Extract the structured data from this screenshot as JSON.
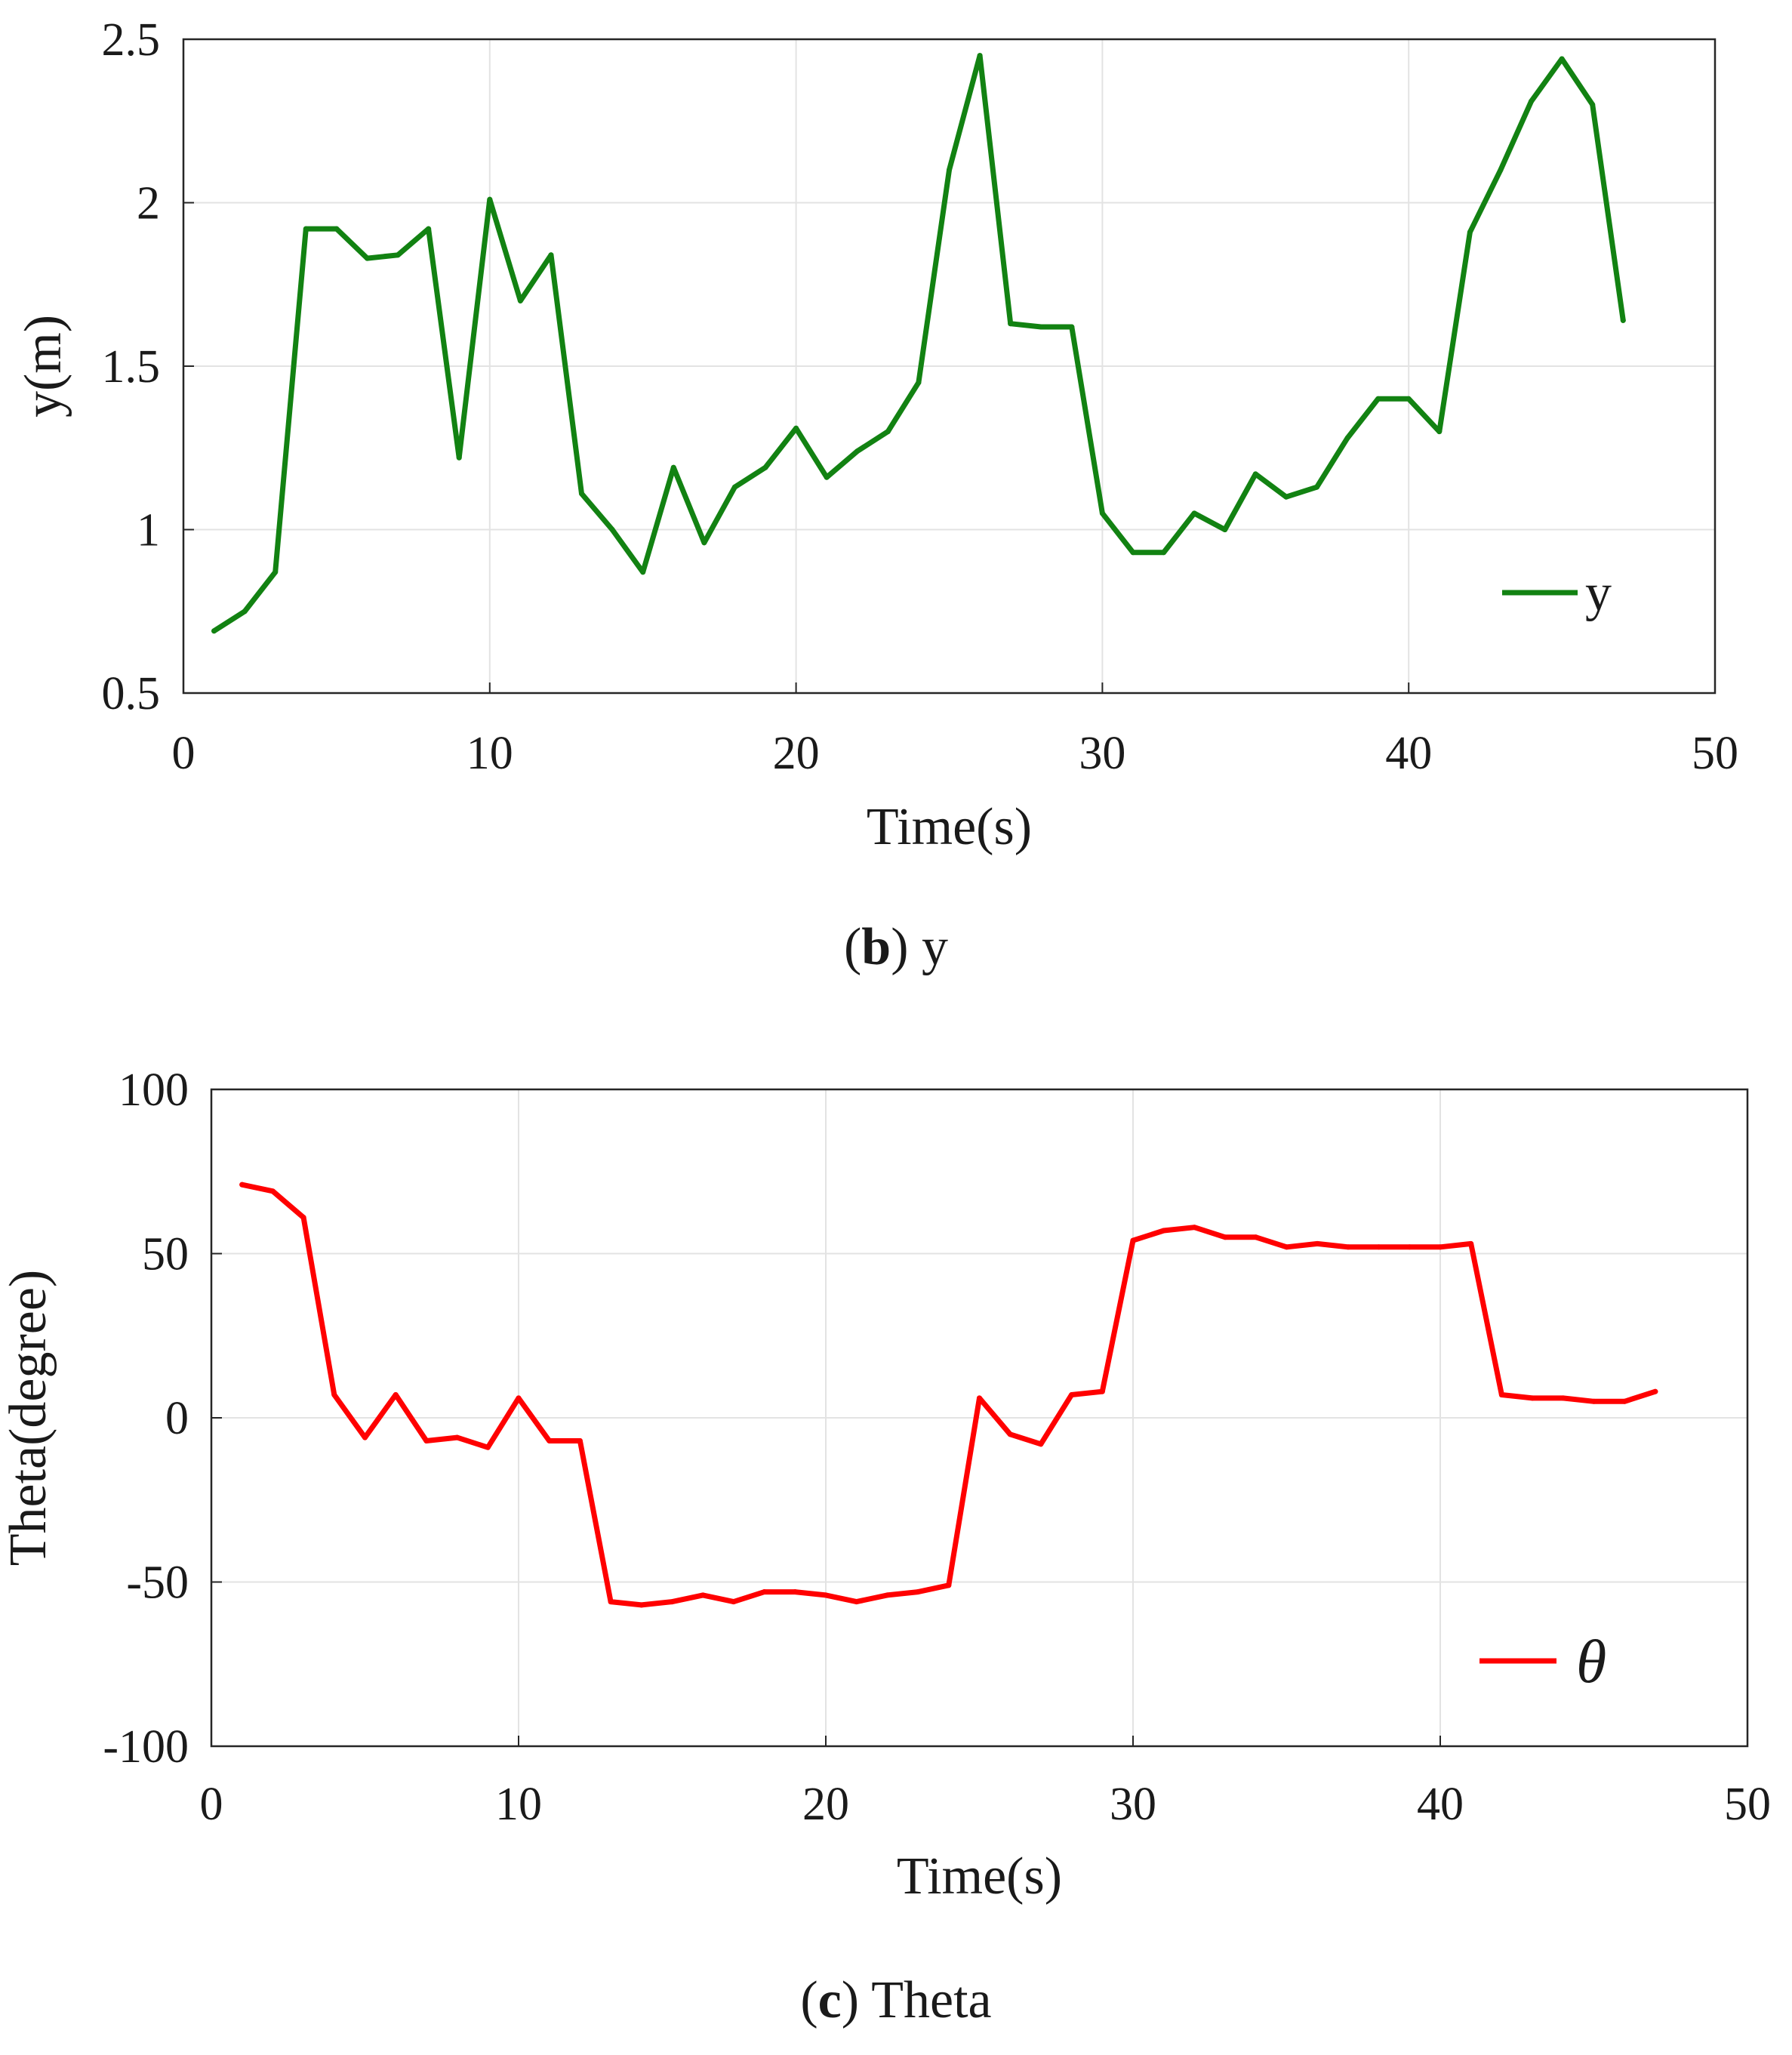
{
  "chart_data": [
    {
      "type": "line",
      "xlabel": "Time(s)",
      "ylabel": "y(m)",
      "xlim": [
        0,
        50
      ],
      "ylim": [
        0.5,
        2.5
      ],
      "xticks": [
        "0",
        "10",
        "20",
        "30",
        "40",
        "50"
      ],
      "yticks": [
        "0.5",
        "1",
        "1.5",
        "2",
        "2.5"
      ],
      "grid": true,
      "legend_position": "bottom-right",
      "caption": {
        "letter": "b",
        "text": "y"
      },
      "series": [
        {
          "name": "y",
          "color": "#128212",
          "x": [
            1,
            2,
            3,
            4,
            5,
            6,
            7,
            8,
            9,
            10,
            11,
            12,
            13,
            14,
            15,
            16,
            17,
            18,
            19,
            20,
            21,
            22,
            23,
            24,
            25,
            26,
            27,
            28,
            29,
            30,
            31,
            32,
            33,
            34,
            35,
            36,
            37,
            38,
            39,
            40,
            41,
            42,
            43,
            44,
            45,
            46,
            47
          ],
          "values": [
            0.69,
            0.75,
            0.87,
            1.92,
            1.92,
            1.83,
            1.84,
            1.92,
            1.22,
            2.01,
            1.7,
            1.84,
            1.11,
            1.0,
            0.87,
            1.19,
            0.96,
            1.13,
            1.19,
            1.31,
            1.16,
            1.24,
            1.3,
            1.45,
            2.1,
            2.45,
            1.63,
            1.62,
            1.62,
            1.05,
            0.93,
            0.93,
            1.05,
            1.0,
            1.17,
            1.1,
            1.13,
            1.28,
            1.4,
            1.4,
            1.3,
            1.91,
            2.1,
            2.31,
            2.44,
            2.3,
            1.64
          ]
        }
      ]
    },
    {
      "type": "line",
      "xlabel": "Time(s)",
      "ylabel": "Theta(degree)",
      "xlim": [
        0,
        50
      ],
      "ylim": [
        -100,
        100
      ],
      "xticks": [
        "0",
        "10",
        "20",
        "30",
        "40",
        "50"
      ],
      "yticks": [
        "-100",
        "-50",
        "0",
        "50",
        "100"
      ],
      "grid": true,
      "legend_position": "bottom-right",
      "caption": {
        "letter": "c",
        "text": "Theta"
      },
      "series": [
        {
          "name": "θ",
          "color": "#ff0000",
          "x": [
            1,
            2,
            3,
            4,
            5,
            6,
            7,
            8,
            9,
            10,
            11,
            12,
            13,
            14,
            15,
            16,
            17,
            18,
            19,
            20,
            21,
            22,
            23,
            24,
            25,
            26,
            27,
            28,
            29,
            30,
            31,
            32,
            33,
            34,
            35,
            36,
            37,
            38,
            39,
            40,
            41,
            42,
            43,
            44,
            45,
            46,
            47
          ],
          "values": [
            71,
            69,
            61,
            7,
            -6,
            7,
            -7,
            -6,
            -9,
            6,
            -7,
            -7,
            -56,
            -57,
            -56,
            -54,
            -56,
            -53,
            -53,
            -54,
            -56,
            -54,
            -53,
            -51,
            6,
            -5,
            -8,
            7,
            8,
            54,
            57,
            58,
            55,
            55,
            52,
            53,
            52,
            52,
            52,
            52,
            53,
            7,
            6,
            6,
            5,
            5,
            8
          ]
        }
      ]
    }
  ]
}
